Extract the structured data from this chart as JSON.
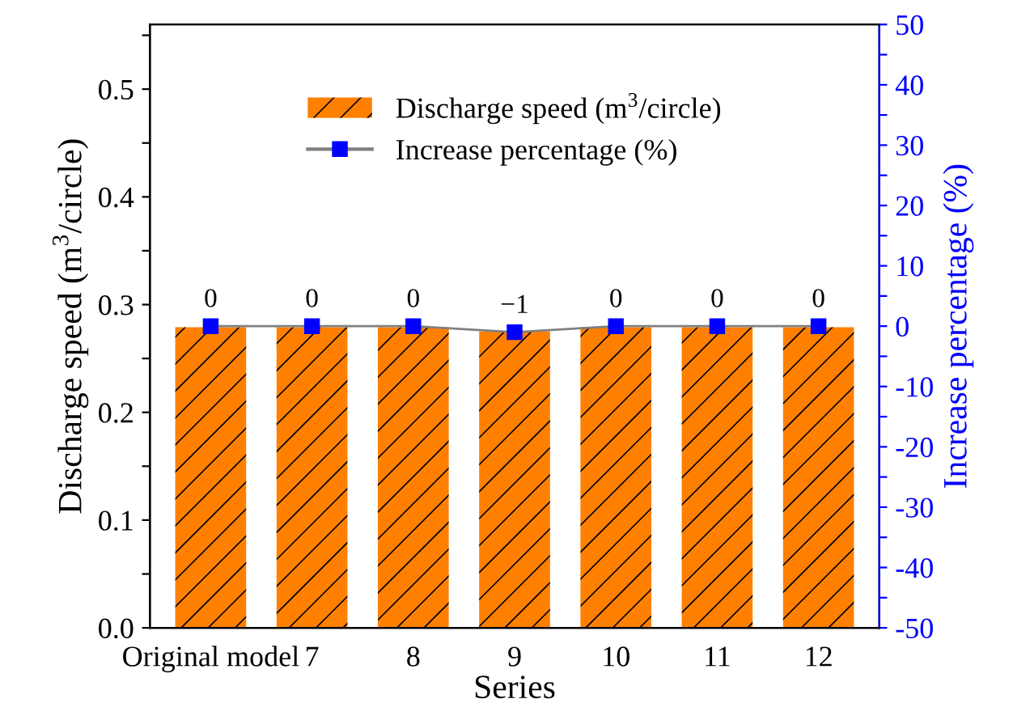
{
  "chart_data": {
    "type": "bar",
    "xlabel": "Series",
    "ylabel": "Discharge speed (m$^{3}$/circle)",
    "y2label": "Increase percentage (%)",
    "categories": [
      "Original model",
      "7",
      "8",
      "9",
      "10",
      "11",
      "12"
    ],
    "series": [
      {
        "name": "Discharge speed (m$^{3}$/circle)",
        "color": "#ff8000",
        "values": [
          0.279,
          0.279,
          0.279,
          0.275,
          0.279,
          0.279,
          0.279
        ]
      },
      {
        "name": "Increase percentage (%)",
        "type": "line",
        "axis": "y2",
        "color": "#0000ff",
        "marker": "square",
        "values": [
          0,
          0,
          0,
          -1,
          0,
          0,
          0
        ],
        "value_labels": [
          "0",
          "0",
          "0",
          "−1",
          "0",
          "0",
          "0"
        ]
      }
    ],
    "ylim": [
      0,
      0.56
    ],
    "yticks": [
      {
        "value": 0,
        "label": "0.0"
      },
      {
        "value": 0.05,
        "label": null
      },
      0.1,
      {
        "value": 0.15,
        "label": null
      },
      0.2,
      {
        "value": 0.25,
        "label": null
      },
      0.3,
      {
        "value": 0.35,
        "label": null
      },
      0.4,
      {
        "value": 0.45,
        "label": null
      },
      0.5,
      {
        "value": 0.55,
        "label": null
      }
    ],
    "y2lim": [
      -50,
      50
    ],
    "y2ticks": [
      -50,
      {
        "value": -45,
        "label": null
      },
      -40,
      {
        "value": -35,
        "label": null
      },
      -30,
      {
        "value": -25,
        "label": null
      },
      -20,
      {
        "value": -15,
        "label": null
      },
      -10,
      {
        "value": -5,
        "label": null
      },
      0,
      {
        "value": 5,
        "label": null
      },
      10,
      {
        "value": 15,
        "label": null
      },
      20,
      {
        "value": 25,
        "label": null
      },
      30,
      {
        "value": 35,
        "label": null
      },
      40,
      {
        "value": 45,
        "label": null
      },
      50
    ],
    "legend": "top",
    "grid": false
  }
}
